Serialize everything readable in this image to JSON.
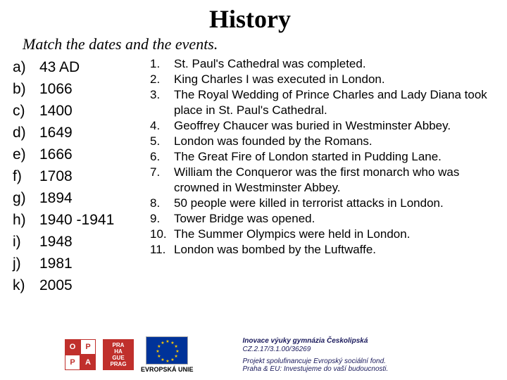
{
  "title": "History",
  "instruction": "Match the dates and the events.",
  "dates": [
    {
      "letter": "a)",
      "value": "43 AD"
    },
    {
      "letter": "b)",
      "value": "1066"
    },
    {
      "letter": "c)",
      "value": "1400"
    },
    {
      "letter": "d)",
      "value": "1649"
    },
    {
      "letter": "e)",
      "value": "1666"
    },
    {
      "letter": "f)",
      "value": "1708"
    },
    {
      "letter": "g)",
      "value": "1894"
    },
    {
      "letter": "h)",
      "value": "1940 -1941"
    },
    {
      "letter": "i)",
      "value": "1948"
    },
    {
      "letter": "j)",
      "value": "1981"
    },
    {
      "letter": "k)",
      "value": "2005"
    }
  ],
  "events": [
    {
      "num": "1.",
      "text": "St. Paul's Cathedral was completed."
    },
    {
      "num": "2.",
      "text": "King Charles I was executed in London."
    },
    {
      "num": "3.",
      "text": "The Royal Wedding of Prince Charles and Lady Diana took place in St. Paul's Cathedral."
    },
    {
      "num": "4.",
      "text": "Geoffrey Chaucer was buried in Westminster Abbey."
    },
    {
      "num": "5.",
      "text": "London was founded by the Romans."
    },
    {
      "num": "6.",
      "text": "The Great Fire of London started in Pudding Lane."
    },
    {
      "num": "7.",
      "text": "William the Conqueror was the first monarch who was crowned in Westminster Abbey."
    },
    {
      "num": "8.",
      "text": "50 people were killed in terrorist attacks in London."
    },
    {
      "num": "9.",
      "text": "Tower Bridge was opened."
    },
    {
      "num": "10.",
      "text": "The Summer Olympics were held in London."
    },
    {
      "num": "11.",
      "text": "London was bombed by the Luftwaffe."
    }
  ],
  "footer": {
    "oppa": {
      "cells": [
        "O",
        "P",
        "P",
        "A"
      ],
      "colors": {
        "border": "#c0302c",
        "bg_off": "#ffffff",
        "bg_on": "#c0302c",
        "fg_off": "#c0302c",
        "fg_on": "#ffffff"
      }
    },
    "prague": {
      "lines": [
        "PRA",
        "HA",
        "GUE",
        "PRAG"
      ],
      "bg": "#c0302c",
      "fg": "#ffffff"
    },
    "eu": {
      "bg": "#003399",
      "stars": "★",
      "star_color": "#ffcc00",
      "label": "EVROPSKÁ UNIE"
    },
    "text": {
      "title": "Inovace výuky gymnázia Českolipská",
      "sub": "CZ.2.17/3.1.00/36269",
      "desc": "Projekt spolufinancuje Evropský sociální fond.\nPraha & EU: Investujeme do vaší budoucnosti."
    }
  },
  "colors": {
    "text": "#000000",
    "bg": "#ffffff"
  }
}
